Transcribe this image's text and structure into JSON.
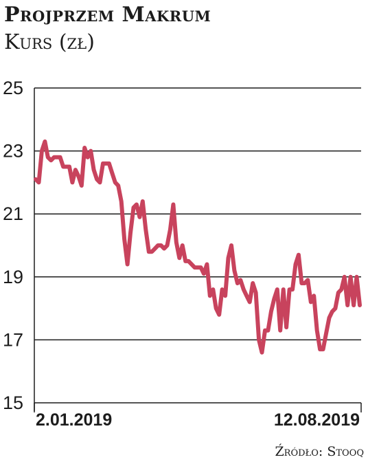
{
  "header": {
    "title": "Projprzem Makrum",
    "subtitle": "Kurs (zł)"
  },
  "footer": {
    "source": "Źródło: Stooq"
  },
  "colors": {
    "line": "#c8435d",
    "grid": "#1c1c1c",
    "text": "#1c1c1c"
  },
  "chart_data": {
    "type": "line",
    "title": "Projprzem Makrum",
    "subtitle": "Kurs (zł)",
    "ylim": [
      15,
      25
    ],
    "yticks": [
      "25",
      "23",
      "21",
      "19",
      "17",
      "15"
    ],
    "xticks": [
      "2.01.2019",
      "12.08.2019"
    ],
    "grid": true,
    "series": [
      {
        "values": [
          22.1,
          22.0,
          23.0,
          23.3,
          22.8,
          22.7,
          22.8,
          22.8,
          22.8,
          22.5,
          22.5,
          22.5,
          22.0,
          22.4,
          22.2,
          21.9,
          23.1,
          22.8,
          23.0,
          22.4,
          22.1,
          22.0,
          22.6,
          22.6,
          22.6,
          22.3,
          22.0,
          21.9,
          21.4,
          20.2,
          19.4,
          20.4,
          21.2,
          21.3,
          20.9,
          21.4,
          20.5,
          19.8,
          19.8,
          19.9,
          20.0,
          20.0,
          19.9,
          20.0,
          20.5,
          21.3,
          20.1,
          19.6,
          20.0,
          19.5,
          19.5,
          19.4,
          19.3,
          19.3,
          19.3,
          19.1,
          19.4,
          18.4,
          18.6,
          18.0,
          17.8,
          18.6,
          18.4,
          19.6,
          20.0,
          19.2,
          18.8,
          18.9,
          18.6,
          18.4,
          18.2,
          18.8,
          18.5,
          17.0,
          16.6,
          17.3,
          17.3,
          17.9,
          18.3,
          18.6,
          17.3,
          18.6,
          17.4,
          18.6,
          18.6,
          19.4,
          19.7,
          18.8,
          18.8,
          18.9,
          18.2,
          18.4,
          17.3,
          16.7,
          16.7,
          17.2,
          17.7,
          17.9,
          18.0,
          18.5,
          18.6,
          19.0,
          18.1,
          19.0,
          18.1,
          19.0,
          18.1
        ]
      }
    ]
  }
}
